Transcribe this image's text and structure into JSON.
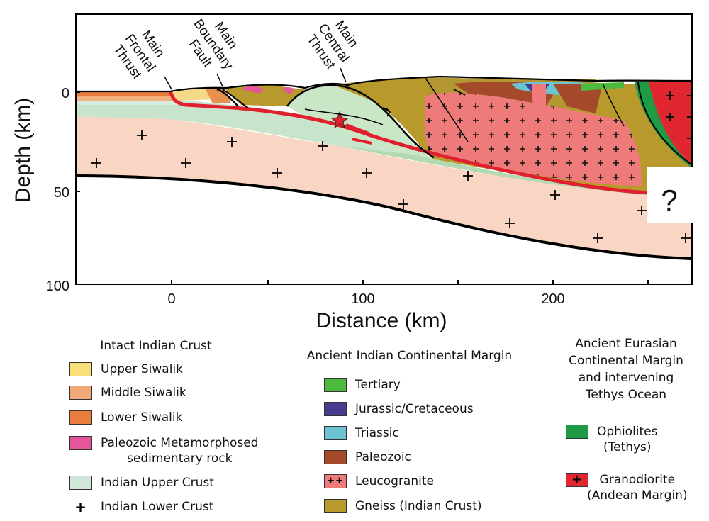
{
  "axes": {
    "y_title": "Depth (km)",
    "x_title": "Distance (km)",
    "y_ticks": [
      "0",
      "50",
      "100"
    ],
    "x_ticks": [
      "0",
      "100",
      "200"
    ]
  },
  "faults": {
    "mft": [
      "Main",
      "Frontal",
      "Thrust"
    ],
    "mbf": [
      "Main",
      "Boundary",
      "Fault"
    ],
    "mct": [
      "Main",
      "Central",
      "Thrust"
    ]
  },
  "unknown_mark": "?",
  "legend": {
    "intact": {
      "heading": "Intact Indian Crust",
      "items": [
        {
          "label": "Upper Siwalik",
          "color": "#f8df78",
          "symbol": ""
        },
        {
          "label": "Middle Siwalik",
          "color": "#efa877",
          "symbol": ""
        },
        {
          "label": "Lower Siwalik",
          "color": "#e87d3e",
          "symbol": ""
        },
        {
          "label": "Paleozoic Metamorphosed\nsedimentary rock",
          "color": "#e5559a",
          "symbol": ""
        },
        {
          "label": "Indian Upper Crust",
          "color": "#cfe6d8",
          "symbol": ""
        },
        {
          "label": "Indian Lower Crust",
          "color": "#ffffff",
          "symbol": "+"
        }
      ]
    },
    "margin": {
      "heading": "Ancient Indian Continental Margin",
      "items": [
        {
          "label": "Tertiary",
          "color": "#4cba3c",
          "symbol": ""
        },
        {
          "label": "Jurassic/Cretaceous",
          "color": "#463c92",
          "symbol": ""
        },
        {
          "label": "Triassic",
          "color": "#6cc3d1",
          "symbol": ""
        },
        {
          "label": "Paleozoic",
          "color": "#a44a2a",
          "symbol": ""
        },
        {
          "label": "Leucogranite",
          "color": "#ee7b7a",
          "symbol": "++"
        },
        {
          "label": "Gneiss (Indian Crust)",
          "color": "#b8992c",
          "symbol": ""
        }
      ]
    },
    "eurasian": {
      "heading": "Ancient Eurasian\nContinental Margin\nand intervening\nTethys Ocean",
      "items": [
        {
          "label": "Ophiolites\n(Tethys)",
          "color": "#1f9a45",
          "symbol": ""
        },
        {
          "label": "Granodiorite\n(Andean Margin)",
          "color": "#e2262f",
          "symbol": "+"
        }
      ]
    }
  }
}
